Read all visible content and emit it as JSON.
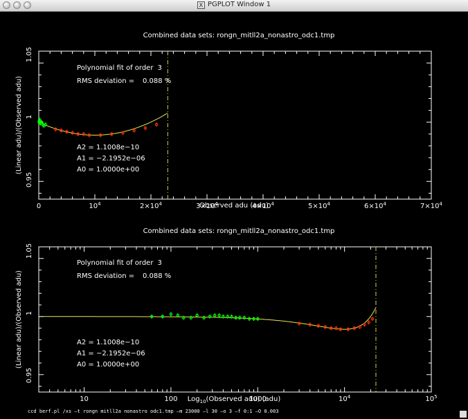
{
  "window": {
    "title": "PGPLOT Window 1",
    "title_icon": "x11-icon"
  },
  "plots": [
    {
      "title": "Combined data sets: rongn_mitll2a_nonastro_odc1.tmp",
      "fit_label": "Polynomial fit of order",
      "fit_order": "3",
      "rms_label": "RMS deviation =",
      "rms_value": "0.088 %",
      "coeffs": [
        "A2 = 1.1008e−10",
        "A1 = −2.1952e−06",
        "A0 = 1.0000e+00"
      ],
      "ylabel": "(Linear adu)/(Observed adu)",
      "xlabel": "Observed adu (adu)",
      "yticks": [
        "1.05",
        "1",
        "0.95"
      ],
      "xticks": [
        "0",
        "10",
        "2×10",
        "3×10",
        "4×10",
        "5×10",
        "6×10",
        "7×10"
      ],
      "xtick_sup": [
        "",
        "4",
        "4",
        "4",
        "4",
        "4",
        "4",
        "4"
      ]
    },
    {
      "title": "Combined data sets: rongn_mitll2a_nonastro_odc1.tmp",
      "fit_label": "Polynomial fit of order",
      "fit_order": "3",
      "rms_label": "RMS deviation =",
      "rms_value": "0.088 %",
      "coeffs": [
        "A2 = 1.1008e−10",
        "A1 = −2.1952e−06",
        "A0 = 1.0000e+00"
      ],
      "ylabel": "(Linear adu)/(Observed adu)",
      "xlabel_pre": "Log",
      "xlabel_sub": "10",
      "xlabel_post": "(Observed adu) (adu)",
      "yticks": [
        "1.05",
        "1",
        "0.95"
      ],
      "xticks": [
        "10",
        "100",
        "1000",
        "10",
        "10"
      ],
      "xtick_sup": [
        "",
        "",
        "",
        "4",
        "5"
      ]
    }
  ],
  "chart_data": [
    {
      "type": "scatter",
      "title": "Combined data sets: rongn_mitll2a_nonastro_odc1.tmp",
      "xlabel": "Observed adu (adu)",
      "ylabel": "(Linear adu)/(Observed adu)",
      "xlim": [
        0,
        70000
      ],
      "ylim": [
        0.935,
        1.06
      ],
      "cutoff_x": 23000,
      "fit": {
        "order": 3,
        "A0": 1.0,
        "A1": -2.1952e-06,
        "A2": 1.1008e-10
      },
      "series": [
        {
          "color": "#00ff00",
          "points": [
            [
              60,
              1.0
            ],
            [
              100,
              1.001
            ],
            [
              150,
              1.002
            ],
            [
              200,
              1.0
            ],
            [
              300,
              0.999
            ],
            [
              500,
              1.0
            ],
            [
              700,
              0.998
            ],
            [
              900,
              0.997
            ],
            [
              1200,
              0.998
            ]
          ]
        },
        {
          "color": "#ff3300",
          "points": [
            [
              3000,
              0.994
            ],
            [
              4000,
              0.993
            ],
            [
              5000,
              0.992
            ],
            [
              6000,
              0.991
            ],
            [
              7000,
              0.99
            ],
            [
              8000,
              0.99
            ],
            [
              9000,
              0.989
            ],
            [
              11000,
              0.989
            ],
            [
              13000,
              0.99
            ],
            [
              15000,
              0.991
            ],
            [
              17000,
              0.993
            ],
            [
              19000,
              0.995
            ],
            [
              21000,
              0.998
            ]
          ]
        }
      ]
    },
    {
      "type": "scatter",
      "title": "Combined data sets: rongn_mitll2a_nonastro_odc1.tmp",
      "xlabel": "Log10(Observed adu) (adu)",
      "ylabel": "(Linear adu)/(Observed adu)",
      "xscale": "log",
      "xlim": [
        3,
        100000
      ],
      "ylim": [
        0.935,
        1.06
      ],
      "cutoff_x": 23000,
      "series": [
        {
          "color": "#00ff00",
          "points": [
            [
              60,
              1.0
            ],
            [
              80,
              1.0
            ],
            [
              100,
              1.002
            ],
            [
              120,
              1.001
            ],
            [
              140,
              0.999
            ],
            [
              170,
              0.999
            ],
            [
              200,
              1.001
            ],
            [
              240,
              0.999
            ],
            [
              280,
              1.0
            ],
            [
              320,
              1.001
            ],
            [
              360,
              1.001
            ],
            [
              400,
              1.0
            ],
            [
              450,
              1.0
            ],
            [
              500,
              1.0
            ],
            [
              560,
              0.999
            ],
            [
              620,
              0.999
            ],
            [
              700,
              0.999
            ],
            [
              800,
              0.998
            ],
            [
              900,
              0.998
            ],
            [
              1000,
              0.998
            ]
          ]
        },
        {
          "color": "#ff3300",
          "points": [
            [
              3000,
              0.994
            ],
            [
              4000,
              0.993
            ],
            [
              5000,
              0.992
            ],
            [
              6000,
              0.991
            ],
            [
              7000,
              0.99
            ],
            [
              8000,
              0.99
            ],
            [
              9000,
              0.989
            ],
            [
              11000,
              0.989
            ],
            [
              13000,
              0.99
            ],
            [
              15000,
              0.991
            ],
            [
              17000,
              0.993
            ],
            [
              19000,
              0.995
            ],
            [
              21000,
              0.998
            ]
          ]
        }
      ]
    }
  ],
  "cmdline": "ccd berf.pl /xs –t rongn mitll2a nonastro odc1.tmp –m 23000 –l 30 –o 3 –f 0:1 –O 0.003"
}
